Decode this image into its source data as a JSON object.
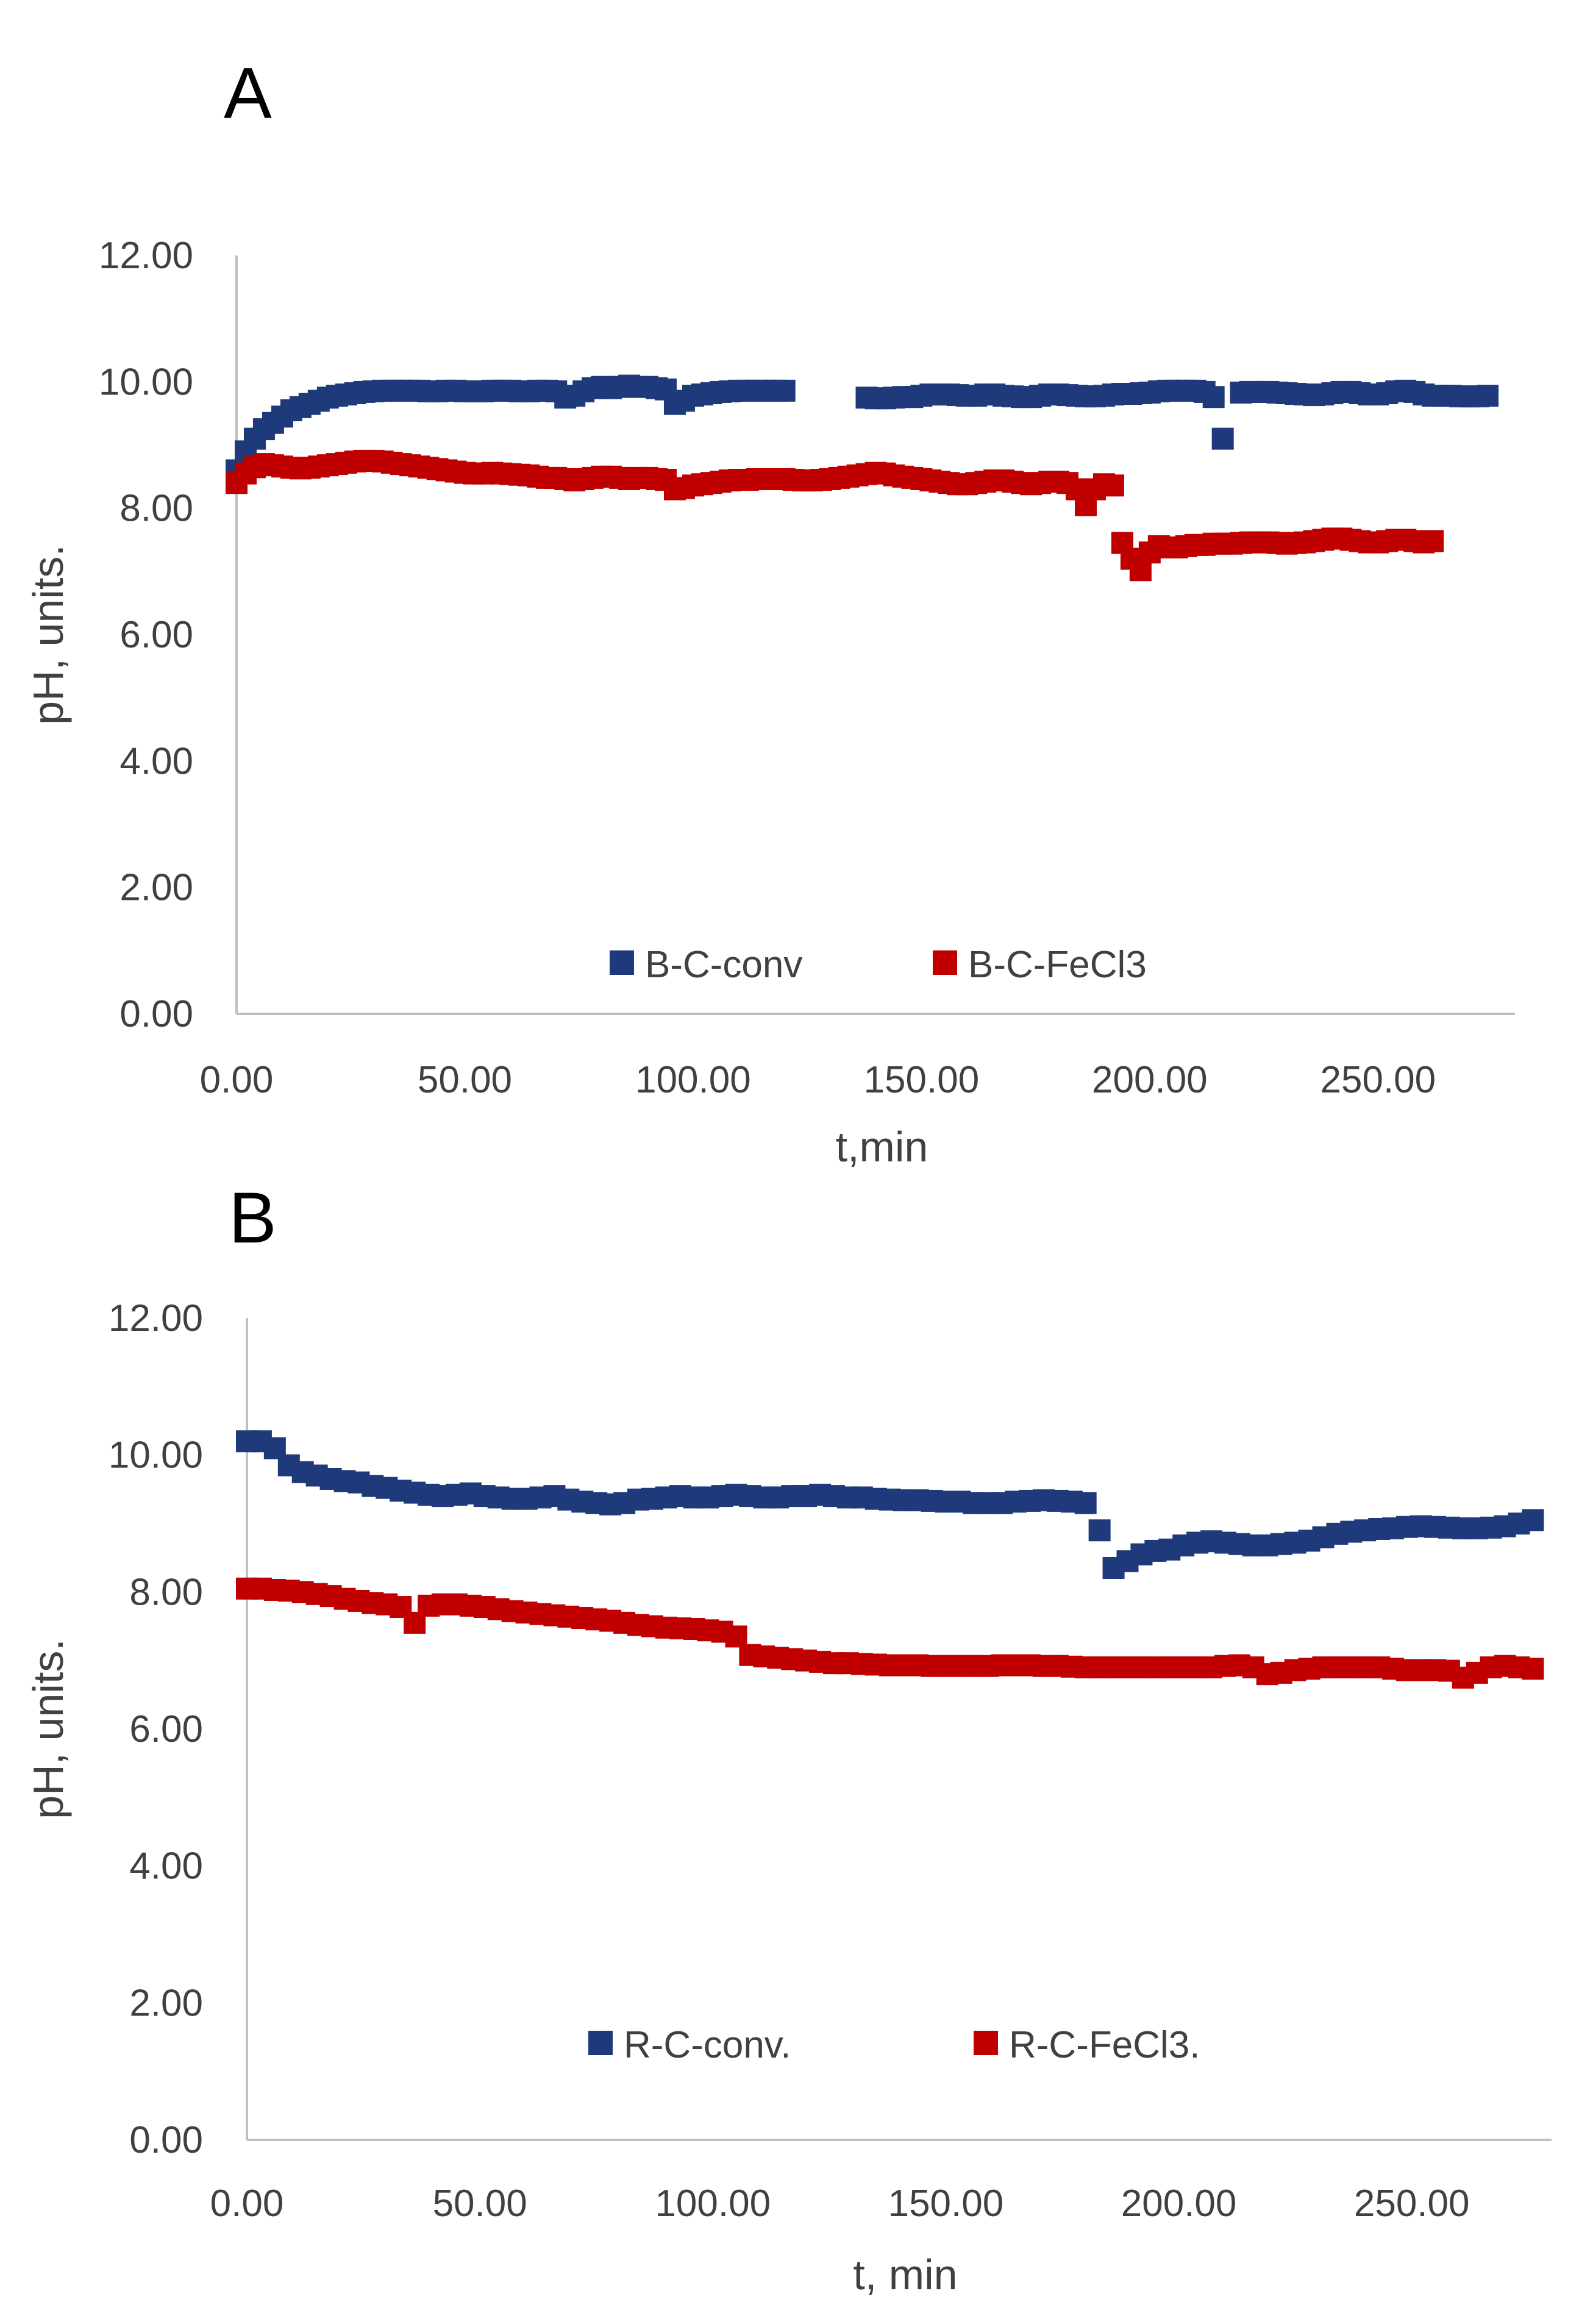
{
  "chart_data": [
    {
      "panel_label": "A",
      "type": "scatter",
      "xlabel": "t,min",
      "ylabel": "pH, units.",
      "xlim": [
        0,
        280
      ],
      "ylim": [
        0,
        12
      ],
      "xticks": [
        "0.00",
        "50.00",
        "100.00",
        "150.00",
        "200.00",
        "250.00"
      ],
      "yticks": [
        "0.00",
        "2.00",
        "4.00",
        "6.00",
        "8.00",
        "10.00",
        "12.00"
      ],
      "legend_position": "bottom-center",
      "colors": {
        "B-C-conv": "#1f3a7a",
        "B-C-FeCl3": "#c00000"
      },
      "series": [
        {
          "name": "B-C-conv",
          "x": [
            0,
            2,
            4,
            6,
            8,
            10,
            12,
            14,
            16,
            18,
            20,
            22,
            24,
            26,
            28,
            30,
            32,
            34,
            36,
            38,
            40,
            42,
            44,
            46,
            48,
            50,
            52,
            54,
            56,
            58,
            60,
            62,
            64,
            66,
            68,
            70,
            72,
            74,
            76,
            78,
            80,
            82,
            84,
            86,
            88,
            90,
            92,
            94,
            96,
            98,
            100,
            102,
            104,
            106,
            108,
            110,
            112,
            114,
            116,
            118,
            120,
            138,
            140,
            142,
            144,
            146,
            148,
            150,
            152,
            154,
            156,
            158,
            160,
            162,
            164,
            166,
            168,
            170,
            172,
            174,
            176,
            178,
            180,
            182,
            184,
            186,
            188,
            190,
            192,
            194,
            196,
            198,
            200,
            202,
            204,
            206,
            208,
            210,
            212,
            214,
            216,
            220,
            222,
            224,
            226,
            228,
            230,
            232,
            234,
            236,
            238,
            240,
            242,
            244,
            246,
            248,
            250,
            252,
            254,
            256,
            258,
            260,
            262,
            264,
            266,
            268,
            270,
            272,
            274
          ],
          "y": [
            8.6,
            8.9,
            9.1,
            9.25,
            9.35,
            9.45,
            9.55,
            9.6,
            9.65,
            9.7,
            9.75,
            9.78,
            9.8,
            9.82,
            9.84,
            9.85,
            9.86,
            9.86,
            9.86,
            9.86,
            9.86,
            9.85,
            9.85,
            9.86,
            9.86,
            9.85,
            9.85,
            9.85,
            9.86,
            9.86,
            9.86,
            9.85,
            9.85,
            9.86,
            9.86,
            9.85,
            9.75,
            9.78,
            9.85,
            9.9,
            9.92,
            9.9,
            9.92,
            9.94,
            9.92,
            9.92,
            9.9,
            9.88,
            9.65,
            9.7,
            9.78,
            9.8,
            9.82,
            9.84,
            9.85,
            9.86,
            9.86,
            9.86,
            9.86,
            9.86,
            9.86,
            9.75,
            9.74,
            9.74,
            9.75,
            9.76,
            9.76,
            9.78,
            9.8,
            9.8,
            9.8,
            9.79,
            9.78,
            9.78,
            9.8,
            9.8,
            9.78,
            9.77,
            9.76,
            9.76,
            9.78,
            9.8,
            9.8,
            9.79,
            9.78,
            9.77,
            9.77,
            9.78,
            9.8,
            9.81,
            9.81,
            9.82,
            9.83,
            9.85,
            9.86,
            9.86,
            9.86,
            9.86,
            9.84,
            9.76,
            9.1,
            9.83,
            9.84,
            9.84,
            9.84,
            9.83,
            9.82,
            9.81,
            9.8,
            9.79,
            9.8,
            9.82,
            9.84,
            9.84,
            9.82,
            9.8,
            9.8,
            9.82,
            9.85,
            9.86,
            9.84,
            9.8,
            9.78,
            9.78,
            9.78,
            9.77,
            9.77,
            9.77,
            9.78
          ]
        },
        {
          "name": "B-C-FeCl3",
          "x": [
            0,
            2,
            4,
            6,
            8,
            10,
            12,
            14,
            16,
            18,
            20,
            22,
            24,
            26,
            28,
            30,
            32,
            34,
            36,
            38,
            40,
            42,
            44,
            46,
            48,
            50,
            52,
            54,
            56,
            58,
            60,
            62,
            64,
            66,
            68,
            70,
            72,
            74,
            76,
            78,
            80,
            82,
            84,
            86,
            88,
            90,
            92,
            94,
            96,
            98,
            100,
            102,
            104,
            106,
            108,
            110,
            112,
            114,
            116,
            118,
            120,
            122,
            124,
            126,
            128,
            130,
            132,
            134,
            136,
            138,
            140,
            142,
            144,
            146,
            148,
            150,
            152,
            154,
            156,
            158,
            160,
            162,
            164,
            166,
            168,
            170,
            172,
            174,
            176,
            178,
            180,
            182,
            184,
            186,
            188,
            190,
            192,
            194,
            196,
            198,
            200,
            202,
            204,
            206,
            208,
            210,
            212,
            214,
            216,
            218,
            220,
            222,
            224,
            226,
            228,
            230,
            232,
            234,
            236,
            238,
            240,
            242,
            244,
            246,
            248,
            250,
            252,
            254,
            256,
            258,
            260,
            262
          ],
          "y": [
            8.4,
            8.55,
            8.65,
            8.7,
            8.68,
            8.66,
            8.64,
            8.63,
            8.64,
            8.66,
            8.68,
            8.7,
            8.72,
            8.74,
            8.75,
            8.75,
            8.74,
            8.72,
            8.7,
            8.68,
            8.66,
            8.64,
            8.62,
            8.6,
            8.58,
            8.56,
            8.55,
            8.55,
            8.56,
            8.55,
            8.54,
            8.53,
            8.52,
            8.5,
            8.48,
            8.48,
            8.46,
            8.44,
            8.46,
            8.48,
            8.5,
            8.5,
            8.48,
            8.46,
            8.48,
            8.48,
            8.46,
            8.45,
            8.3,
            8.32,
            8.36,
            8.38,
            8.4,
            8.42,
            8.44,
            8.45,
            8.45,
            8.46,
            8.46,
            8.46,
            8.46,
            8.45,
            8.44,
            8.44,
            8.45,
            8.46,
            8.48,
            8.5,
            8.52,
            8.54,
            8.56,
            8.55,
            8.52,
            8.5,
            8.48,
            8.46,
            8.44,
            8.42,
            8.4,
            8.38,
            8.38,
            8.4,
            8.42,
            8.44,
            8.44,
            8.42,
            8.4,
            8.38,
            8.4,
            8.42,
            8.42,
            8.4,
            8.3,
            8.05,
            8.3,
            8.38,
            8.36,
            7.45,
            7.2,
            7.02,
            7.3,
            7.4,
            7.38,
            7.38,
            7.4,
            7.42,
            7.42,
            7.44,
            7.44,
            7.44,
            7.45,
            7.46,
            7.46,
            7.46,
            7.45,
            7.44,
            7.45,
            7.46,
            7.48,
            7.5,
            7.52,
            7.52,
            7.5,
            7.48,
            7.46,
            7.46,
            7.48,
            7.5,
            7.5,
            7.48,
            7.46,
            7.48
          ]
        }
      ]
    },
    {
      "panel_label": "B",
      "type": "scatter",
      "xlabel": "t, min",
      "ylabel": "pH, units.",
      "xlim": [
        0,
        280
      ],
      "ylim": [
        0,
        12
      ],
      "xticks": [
        "0.00",
        "50.00",
        "100.00",
        "150.00",
        "200.00",
        "250.00"
      ],
      "yticks": [
        "0.00",
        "2.00",
        "4.00",
        "6.00",
        "8.00",
        "10.00",
        "12.00"
      ],
      "legend_position": "bottom-center",
      "colors": {
        "R-C-conv.": "#1f3a7a",
        "R-C-FeCl3.": "#c00000"
      },
      "series": [
        {
          "name": "R-C-conv.",
          "x": [
            0,
            3,
            6,
            9,
            12,
            15,
            18,
            21,
            24,
            27,
            30,
            33,
            36,
            39,
            42,
            45,
            48,
            51,
            54,
            57,
            60,
            63,
            66,
            69,
            72,
            75,
            78,
            81,
            84,
            87,
            90,
            93,
            96,
            99,
            102,
            105,
            108,
            111,
            114,
            117,
            120,
            123,
            126,
            129,
            132,
            135,
            138,
            141,
            144,
            147,
            150,
            153,
            156,
            159,
            162,
            165,
            168,
            171,
            174,
            177,
            180,
            183,
            186,
            189,
            192,
            195,
            198,
            201,
            204,
            207,
            210,
            213,
            216,
            219,
            222,
            225,
            228,
            231,
            234,
            237,
            240,
            243,
            246,
            249,
            252,
            255,
            258,
            261,
            264,
            267,
            270,
            273,
            276
          ],
          "y": [
            10.2,
            10.2,
            10.1,
            9.85,
            9.75,
            9.7,
            9.65,
            9.62,
            9.6,
            9.55,
            9.52,
            9.48,
            9.45,
            9.42,
            9.4,
            9.42,
            9.44,
            9.4,
            9.38,
            9.36,
            9.36,
            9.38,
            9.4,
            9.35,
            9.32,
            9.3,
            9.28,
            9.3,
            9.35,
            9.36,
            9.38,
            9.4,
            9.38,
            9.38,
            9.4,
            9.42,
            9.4,
            9.38,
            9.38,
            9.4,
            9.4,
            9.42,
            9.4,
            9.38,
            9.38,
            9.36,
            9.35,
            9.34,
            9.34,
            9.33,
            9.32,
            9.32,
            9.3,
            9.3,
            9.3,
            9.32,
            9.33,
            9.34,
            9.33,
            9.32,
            9.3,
            8.9,
            8.35,
            8.45,
            8.55,
            8.6,
            8.62,
            8.68,
            8.72,
            8.74,
            8.72,
            8.7,
            8.68,
            8.68,
            8.7,
            8.72,
            8.75,
            8.8,
            8.85,
            8.88,
            8.9,
            8.92,
            8.93,
            8.95,
            8.96,
            8.95,
            8.94,
            8.93,
            8.93,
            8.94,
            8.96,
            9.0,
            9.05
          ]
        },
        {
          "name": "R-C-FeCl3.",
          "x": [
            0,
            3,
            6,
            9,
            12,
            15,
            18,
            21,
            24,
            27,
            30,
            33,
            36,
            39,
            42,
            45,
            48,
            51,
            54,
            57,
            60,
            63,
            66,
            69,
            72,
            75,
            78,
            81,
            84,
            87,
            90,
            93,
            96,
            99,
            102,
            105,
            108,
            111,
            114,
            117,
            120,
            123,
            126,
            129,
            132,
            135,
            138,
            141,
            144,
            147,
            150,
            153,
            156,
            159,
            162,
            165,
            168,
            171,
            174,
            177,
            180,
            183,
            186,
            189,
            192,
            195,
            198,
            201,
            204,
            207,
            210,
            213,
            216,
            219,
            222,
            225,
            228,
            231,
            234,
            237,
            240,
            243,
            246,
            249,
            252,
            255,
            258,
            261,
            264,
            267,
            270,
            273,
            276
          ],
          "y": [
            8.05,
            8.05,
            8.03,
            8.02,
            8.0,
            7.97,
            7.94,
            7.9,
            7.87,
            7.84,
            7.82,
            7.78,
            7.55,
            7.8,
            7.82,
            7.82,
            7.8,
            7.78,
            7.75,
            7.72,
            7.7,
            7.68,
            7.66,
            7.64,
            7.62,
            7.6,
            7.58,
            7.55,
            7.52,
            7.5,
            7.48,
            7.47,
            7.46,
            7.44,
            7.42,
            7.35,
            7.08,
            7.06,
            7.04,
            7.02,
            7.0,
            6.98,
            6.96,
            6.96,
            6.95,
            6.94,
            6.93,
            6.93,
            6.93,
            6.92,
            6.92,
            6.92,
            6.92,
            6.92,
            6.93,
            6.93,
            6.93,
            6.92,
            6.92,
            6.91,
            6.9,
            6.9,
            6.9,
            6.9,
            6.9,
            6.9,
            6.9,
            6.9,
            6.9,
            6.9,
            6.92,
            6.93,
            6.9,
            6.8,
            6.82,
            6.86,
            6.88,
            6.9,
            6.9,
            6.9,
            6.9,
            6.9,
            6.88,
            6.86,
            6.86,
            6.86,
            6.85,
            6.75,
            6.82,
            6.9,
            6.92,
            6.9,
            6.88
          ]
        }
      ]
    }
  ]
}
